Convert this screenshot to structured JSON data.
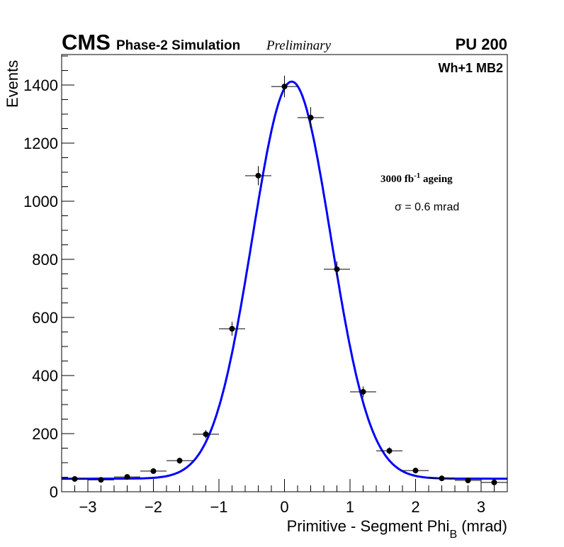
{
  "chart_data": {
    "type": "scatter",
    "title": "",
    "header": {
      "experiment": "CMS",
      "subtitle": "Phase-2 Simulation",
      "status": "Preliminary",
      "pileup": "PU 200",
      "region": "Wh+1 MB2",
      "lumi_prefix": "3000 fb",
      "lumi_exp": "-1",
      "lumi_suffix": " ageing",
      "fit_result": "σ = 0.6 mrad"
    },
    "xlabel": "Primitive - Segment Phi",
    "xlabel_sub": "B",
    "xlabel_unit": " (mrad)",
    "ylabel": "Events",
    "xlim": [
      -3.4,
      3.4
    ],
    "ylim": [
      0,
      1505
    ],
    "xticks": [
      -3,
      -2,
      -1,
      0,
      1,
      2,
      3
    ],
    "xtick_labels": [
      "−3",
      "−2",
      "−1",
      "0",
      "1",
      "2",
      "3"
    ],
    "yticks": [
      0,
      200,
      400,
      600,
      800,
      1000,
      1200,
      1400
    ],
    "ytick_labels": [
      "0",
      "200",
      "400",
      "600",
      "800",
      "1000",
      "1200",
      "1400"
    ],
    "bin_width": 0.4,
    "series": [
      {
        "name": "simulation",
        "color": "#000000",
        "x": [
          -3.2,
          -2.8,
          -2.4,
          -2.0,
          -1.6,
          -1.2,
          -0.8,
          -0.4,
          0.0,
          0.4,
          0.8,
          1.2,
          1.6,
          2.0,
          2.4,
          2.8,
          3.2
        ],
        "y": [
          44,
          41,
          51,
          71,
          107,
          198,
          561,
          1088,
          1395,
          1288,
          766,
          344,
          141,
          73,
          46,
          39,
          32
        ]
      },
      {
        "name": "gaussian fit",
        "color": "#0000ff",
        "type": "line",
        "amplitude": 1367,
        "mean": 0.11,
        "sigma": 0.6,
        "constant": 45
      }
    ],
    "grid": false,
    "legend": "none"
  }
}
